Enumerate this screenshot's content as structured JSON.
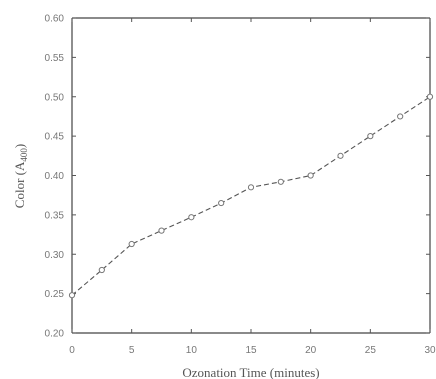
{
  "chart_data": {
    "type": "line",
    "title": "",
    "xlabel": "Ozonation Time (minutes)",
    "ylabel_main": "Color (A",
    "ylabel_sub": "400",
    "ylabel_close": ")",
    "xlim": [
      0,
      30
    ],
    "ylim": [
      0.2,
      0.6
    ],
    "x_ticks": [
      0,
      5,
      10,
      15,
      20,
      25,
      30
    ],
    "x_tick_labels": [
      "0",
      "5",
      "10",
      "15",
      "20",
      "25",
      "30"
    ],
    "y_ticks": [
      0.2,
      0.25,
      0.3,
      0.35,
      0.4,
      0.45,
      0.5,
      0.55,
      0.6
    ],
    "y_tick_labels": [
      "0.20",
      "0.25",
      "0.30",
      "0.35",
      "0.40",
      "0.45",
      "0.50",
      "0.55",
      "0.60"
    ],
    "grid": false,
    "series": [
      {
        "x": [
          0,
          2.5,
          5,
          7.5,
          10,
          12.5,
          15,
          17.5,
          20,
          22.5,
          25,
          27.5,
          30
        ],
        "y": [
          0.248,
          0.28,
          0.313,
          0.33,
          0.347,
          0.365,
          0.385,
          0.392,
          0.4,
          0.425,
          0.45,
          0.475,
          0.5
        ]
      }
    ]
  }
}
